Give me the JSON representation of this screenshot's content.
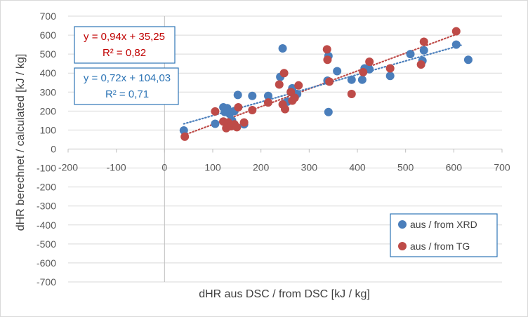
{
  "chart_data": {
    "type": "scatter",
    "xlabel": "dHR aus DSC / from DSC [kJ / kg]",
    "ylabel": "dHR berechnet / calculated [kJ / kg]",
    "xlim": [
      -200,
      700
    ],
    "ylim": [
      -700,
      700
    ],
    "x_ticks": [
      "-200",
      "-100",
      "0",
      "100",
      "200",
      "300",
      "400",
      "500",
      "600",
      "700"
    ],
    "y_ticks": [
      "700",
      "600",
      "500",
      "400",
      "300",
      "200",
      "100",
      "0",
      "-100",
      "-200",
      "-300",
      "-400",
      "-500",
      "-600",
      "-700"
    ],
    "grid": "horizontal",
    "legend_position": "bottom-right",
    "series": [
      {
        "name": "aus / from XRD",
        "color": "#4a7ebb",
        "points": [
          [
            40,
            98
          ],
          [
            105,
            133
          ],
          [
            122,
            220
          ],
          [
            125,
            195
          ],
          [
            130,
            215
          ],
          [
            135,
            185
          ],
          [
            140,
            150
          ],
          [
            145,
            200
          ],
          [
            152,
            285
          ],
          [
            165,
            130
          ],
          [
            182,
            280
          ],
          [
            215,
            280
          ],
          [
            240,
            380
          ],
          [
            245,
            530
          ],
          [
            248,
            240
          ],
          [
            255,
            250
          ],
          [
            262,
            300
          ],
          [
            265,
            320
          ],
          [
            270,
            280
          ],
          [
            275,
            290
          ],
          [
            338,
            360
          ],
          [
            340,
            490
          ],
          [
            340,
            195
          ],
          [
            358,
            410
          ],
          [
            388,
            365
          ],
          [
            410,
            365
          ],
          [
            415,
            425
          ],
          [
            425,
            420
          ],
          [
            468,
            385
          ],
          [
            510,
            500
          ],
          [
            535,
            465
          ],
          [
            538,
            520
          ],
          [
            605,
            550
          ],
          [
            630,
            470
          ]
        ]
      },
      {
        "name": "aus / from TG",
        "color": "#be4b48",
        "points": [
          [
            42,
            65
          ],
          [
            105,
            198
          ],
          [
            122,
            145
          ],
          [
            128,
            110
          ],
          [
            132,
            140
          ],
          [
            138,
            120
          ],
          [
            145,
            130
          ],
          [
            150,
            115
          ],
          [
            153,
            220
          ],
          [
            165,
            140
          ],
          [
            182,
            205
          ],
          [
            215,
            245
          ],
          [
            238,
            340
          ],
          [
            245,
            235
          ],
          [
            248,
            400
          ],
          [
            250,
            210
          ],
          [
            262,
            300
          ],
          [
            265,
            255
          ],
          [
            270,
            270
          ],
          [
            278,
            335
          ],
          [
            337,
            525
          ],
          [
            338,
            470
          ],
          [
            342,
            355
          ],
          [
            388,
            290
          ],
          [
            412,
            405
          ],
          [
            425,
            460
          ],
          [
            468,
            425
          ],
          [
            532,
            445
          ],
          [
            538,
            565
          ],
          [
            605,
            620
          ]
        ]
      }
    ],
    "trendlines": [
      {
        "series": "aus / from TG",
        "slope": 0.94,
        "intercept": 35.25,
        "x_range": [
          40,
          610
        ],
        "color": "#be4b48"
      },
      {
        "series": "aus / from XRD",
        "slope": 0.72,
        "intercept": 104.03,
        "x_range": [
          40,
          615
        ],
        "color": "#4a7ebb"
      }
    ],
    "annotations": [
      {
        "eq": "y = 0,94x + 35,25",
        "r2": "R² = 0,82",
        "color": "#c00000",
        "border": "#2e75b6"
      },
      {
        "eq": "y = 0,72x + 104,03",
        "r2": "R² = 0,71",
        "color": "#2e75b6",
        "border": "#2e75b6"
      }
    ]
  }
}
